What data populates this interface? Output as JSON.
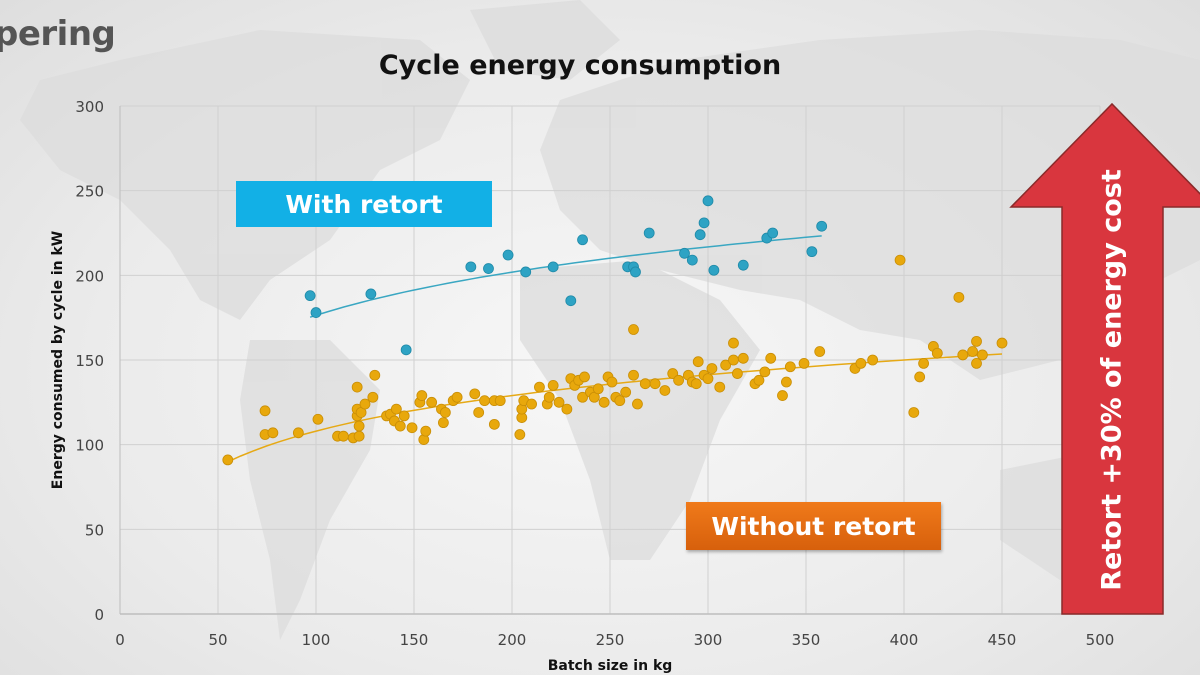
{
  "slide": {
    "title_fragment": "pering"
  },
  "annotations": {
    "with_retort_label": "With retort",
    "without_retort_label": "Without retort",
    "arrow_label": "Retort +30% of energy cost",
    "with_color": "#12b0e6",
    "without_color": "#e8700f",
    "arrow_color": "#d9363e"
  },
  "chart_data": {
    "type": "scatter",
    "title": "Cycle energy consumption",
    "xlabel": "Batch size in kg",
    "ylabel": "Energy consumed by cycle  in kW",
    "xlim": [
      0,
      500
    ],
    "ylim": [
      0,
      300
    ],
    "xticks": [
      0,
      50,
      100,
      150,
      200,
      250,
      300,
      350,
      400,
      450,
      500
    ],
    "yticks": [
      0,
      50,
      100,
      150,
      200,
      250,
      300
    ],
    "grid": true,
    "series": [
      {
        "name": "With retort",
        "color": "#2ea3c4",
        "trendline": "logarithmic",
        "trend_range": [
          97,
          358
        ],
        "points": [
          [
            97,
            188
          ],
          [
            100,
            178
          ],
          [
            128,
            189
          ],
          [
            146,
            156
          ],
          [
            179,
            205
          ],
          [
            188,
            204
          ],
          [
            198,
            212
          ],
          [
            207,
            202
          ],
          [
            221,
            205
          ],
          [
            230,
            185
          ],
          [
            236,
            221
          ],
          [
            259,
            205
          ],
          [
            262,
            205
          ],
          [
            263,
            202
          ],
          [
            270,
            225
          ],
          [
            288,
            213
          ],
          [
            292,
            209
          ],
          [
            296,
            224
          ],
          [
            298,
            231
          ],
          [
            300,
            244
          ],
          [
            303,
            203
          ],
          [
            318,
            206
          ],
          [
            330,
            222
          ],
          [
            333,
            225
          ],
          [
            353,
            214
          ],
          [
            358,
            229
          ]
        ]
      },
      {
        "name": "Without retort",
        "color": "#e8a80c",
        "trendline": "logarithmic",
        "trend_range": [
          55,
          450
        ],
        "points": [
          [
            55,
            91
          ],
          [
            74,
            120
          ],
          [
            74,
            106
          ],
          [
            78,
            107
          ],
          [
            91,
            107
          ],
          [
            101,
            115
          ],
          [
            111,
            105
          ],
          [
            114,
            105
          ],
          [
            119,
            104
          ],
          [
            121,
            134
          ],
          [
            121,
            117
          ],
          [
            121,
            121
          ],
          [
            122,
            111
          ],
          [
            122,
            105
          ],
          [
            123,
            119
          ],
          [
            125,
            124
          ],
          [
            129,
            128
          ],
          [
            130,
            141
          ],
          [
            136,
            117
          ],
          [
            138,
            118
          ],
          [
            140,
            114
          ],
          [
            141,
            121
          ],
          [
            143,
            111
          ],
          [
            145,
            117
          ],
          [
            149,
            110
          ],
          [
            153,
            125
          ],
          [
            154,
            129
          ],
          [
            155,
            103
          ],
          [
            156,
            108
          ],
          [
            159,
            125
          ],
          [
            164,
            121
          ],
          [
            165,
            113
          ],
          [
            166,
            119
          ],
          [
            170,
            126
          ],
          [
            172,
            128
          ],
          [
            181,
            130
          ],
          [
            183,
            119
          ],
          [
            186,
            126
          ],
          [
            191,
            126
          ],
          [
            191,
            112
          ],
          [
            194,
            126
          ],
          [
            204,
            106
          ],
          [
            205,
            116
          ],
          [
            205,
            121
          ],
          [
            206,
            126
          ],
          [
            210,
            124
          ],
          [
            214,
            134
          ],
          [
            218,
            124
          ],
          [
            219,
            128
          ],
          [
            221,
            135
          ],
          [
            224,
            125
          ],
          [
            228,
            121
          ],
          [
            230,
            139
          ],
          [
            232,
            135
          ],
          [
            234,
            138
          ],
          [
            236,
            128
          ],
          [
            237,
            140
          ],
          [
            240,
            131
          ],
          [
            242,
            128
          ],
          [
            244,
            133
          ],
          [
            247,
            125
          ],
          [
            249,
            140
          ],
          [
            251,
            137
          ],
          [
            253,
            128
          ],
          [
            255,
            126
          ],
          [
            258,
            131
          ],
          [
            262,
            141
          ],
          [
            262,
            168
          ],
          [
            264,
            124
          ],
          [
            268,
            136
          ],
          [
            273,
            136
          ],
          [
            278,
            132
          ],
          [
            282,
            142
          ],
          [
            285,
            138
          ],
          [
            290,
            141
          ],
          [
            292,
            137
          ],
          [
            294,
            136
          ],
          [
            295,
            149
          ],
          [
            298,
            141
          ],
          [
            300,
            139
          ],
          [
            302,
            145
          ],
          [
            306,
            134
          ],
          [
            309,
            147
          ],
          [
            313,
            150
          ],
          [
            313,
            160
          ],
          [
            315,
            142
          ],
          [
            318,
            151
          ],
          [
            324,
            136
          ],
          [
            326,
            138
          ],
          [
            329,
            143
          ],
          [
            332,
            151
          ],
          [
            338,
            129
          ],
          [
            340,
            137
          ],
          [
            342,
            146
          ],
          [
            349,
            148
          ],
          [
            357,
            155
          ],
          [
            375,
            145
          ],
          [
            378,
            148
          ],
          [
            384,
            150
          ],
          [
            398,
            209
          ],
          [
            405,
            119
          ],
          [
            408,
            140
          ],
          [
            410,
            148
          ],
          [
            415,
            158
          ],
          [
            417,
            154
          ],
          [
            428,
            187
          ],
          [
            430,
            153
          ],
          [
            435,
            155
          ],
          [
            437,
            161
          ],
          [
            437,
            148
          ],
          [
            440,
            153
          ],
          [
            450,
            160
          ]
        ]
      }
    ]
  }
}
